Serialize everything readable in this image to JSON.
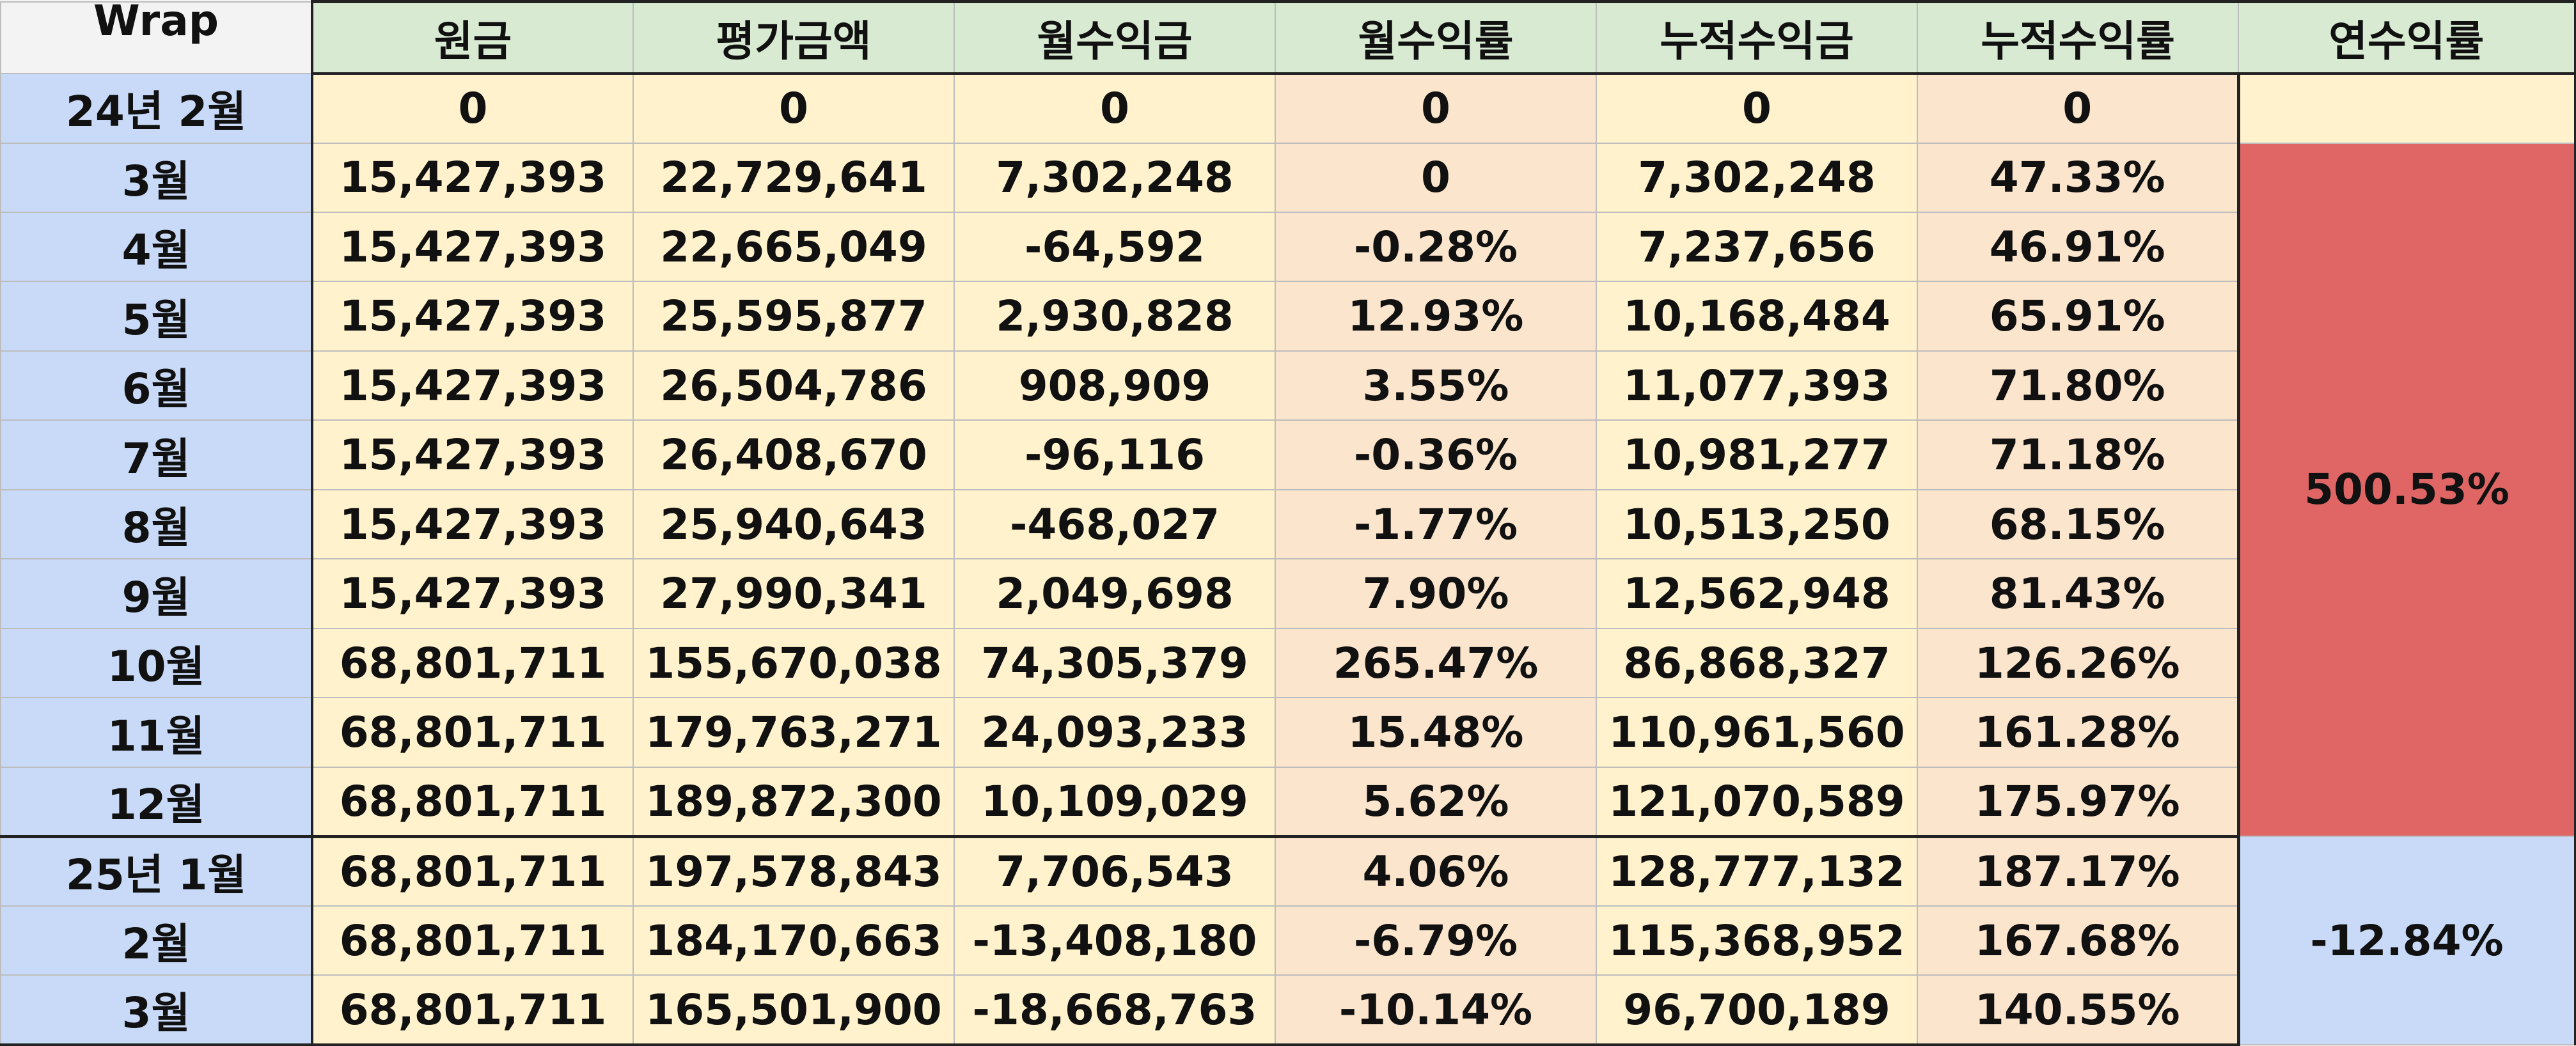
{
  "corner_label": "Wrap",
  "headers": [
    "원금",
    "평가금액",
    "월수익금",
    "월수익률",
    "누적수익금",
    "누적수익률",
    "연수익률"
  ],
  "rows": [
    {
      "label": "24년 2월",
      "cells": [
        "0",
        "0",
        "0",
        "0",
        "0",
        "0"
      ]
    },
    {
      "label": "3월",
      "cells": [
        "15,427,393",
        "22,729,641",
        "7,302,248",
        "0",
        "7,302,248",
        "47.33%"
      ]
    },
    {
      "label": "4월",
      "cells": [
        "15,427,393",
        "22,665,049",
        "-64,592",
        "-0.28%",
        "7,237,656",
        "46.91%"
      ]
    },
    {
      "label": "5월",
      "cells": [
        "15,427,393",
        "25,595,877",
        "2,930,828",
        "12.93%",
        "10,168,484",
        "65.91%"
      ]
    },
    {
      "label": "6월",
      "cells": [
        "15,427,393",
        "26,504,786",
        "908,909",
        "3.55%",
        "11,077,393",
        "71.80%"
      ]
    },
    {
      "label": "7월",
      "cells": [
        "15,427,393",
        "26,408,670",
        "-96,116",
        "-0.36%",
        "10,981,277",
        "71.18%"
      ]
    },
    {
      "label": "8월",
      "cells": [
        "15,427,393",
        "25,940,643",
        "-468,027",
        "-1.77%",
        "10,513,250",
        "68.15%"
      ]
    },
    {
      "label": "9월",
      "cells": [
        "15,427,393",
        "27,990,341",
        "2,049,698",
        "7.90%",
        "12,562,948",
        "81.43%"
      ]
    },
    {
      "label": "10월",
      "cells": [
        "68,801,711",
        "155,670,038",
        "74,305,379",
        "265.47%",
        "86,868,327",
        "126.26%"
      ]
    },
    {
      "label": "11월",
      "cells": [
        "68,801,711",
        "179,763,271",
        "24,093,233",
        "15.48%",
        "110,961,560",
        "161.28%"
      ]
    },
    {
      "label": "12월",
      "cells": [
        "68,801,711",
        "189,872,300",
        "10,109,029",
        "5.62%",
        "121,070,589",
        "175.97%"
      ]
    },
    {
      "label": "25년 1월",
      "cells": [
        "68,801,711",
        "197,578,843",
        "7,706,543",
        "4.06%",
        "128,777,132",
        "187.17%"
      ]
    },
    {
      "label": "2월",
      "cells": [
        "68,801,711",
        "184,170,663",
        "-13,408,180",
        "-6.79%",
        "115,368,952",
        "167.68%"
      ]
    },
    {
      "label": "3월",
      "cells": [
        "68,801,711",
        "165,501,900",
        "-18,668,763",
        "-10.14%",
        "96,700,189",
        "140.55%"
      ]
    }
  ],
  "annual": [
    {
      "value": "500.53%",
      "color": "#e06666"
    },
    {
      "value": "-12.84%",
      "color": "#c9daf8"
    }
  ],
  "colors": {
    "header_bg": "#d9ead3",
    "row_label_bg": "#c9daf8",
    "value_bg": "#fff2cc",
    "rate_bg": "#fce5cd"
  }
}
